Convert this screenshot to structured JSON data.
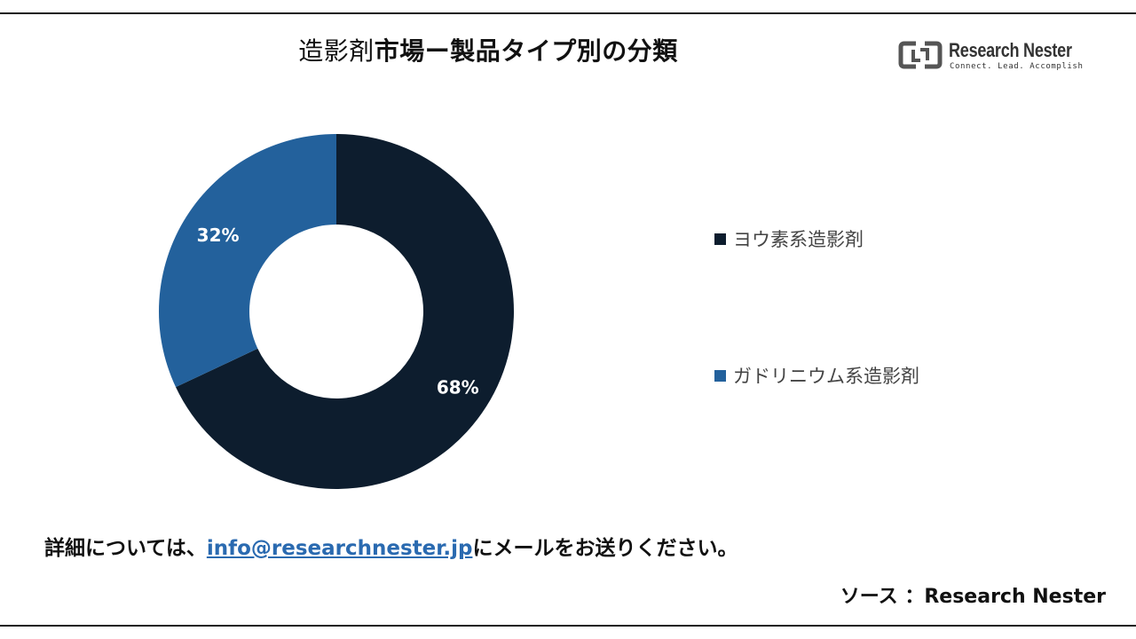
{
  "title": {
    "part1": "造影剤",
    "part2": "市場ー製品タイプ別の分類"
  },
  "logo": {
    "name_bold": "Research",
    "name_light": " Nester",
    "tagline": "Connect. Lead. Accomplish"
  },
  "chart_data": {
    "type": "pie",
    "variant": "donut",
    "labels": [
      "ヨウ素系造影剤",
      "ガドリニウム系造影剤"
    ],
    "values": [
      68,
      32
    ],
    "value_labels": [
      "68%",
      "32%"
    ],
    "colors": [
      "#0d1d2e",
      "#23619c"
    ],
    "legend_position": "right"
  },
  "footer": {
    "contact_prefix": "詳細については、",
    "contact_email": "info@researchnester.jp",
    "contact_suffix": "にメールをお送りください。",
    "source": "ソース ：Research Nester"
  }
}
